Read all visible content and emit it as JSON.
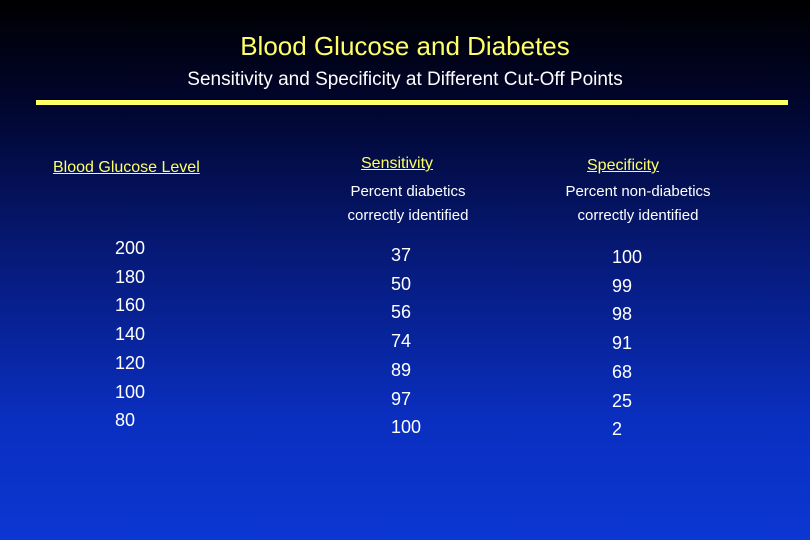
{
  "slide": {
    "title": "Blood Glucose and Diabetes",
    "subtitle": "Sensitivity and Specificity at Different Cut-Off Points",
    "colors": {
      "accent_yellow": "#ffff66",
      "text_white": "#ffffff",
      "background_top": "#000000",
      "background_bottom": "#0b37d2"
    }
  },
  "table": {
    "columns": {
      "glucose": {
        "header": "Blood Glucose Level",
        "values": [
          "200",
          "180",
          "160",
          "140",
          "120",
          "100",
          "80"
        ]
      },
      "sensitivity": {
        "header": "Sensitivity",
        "description_line1": "Percent diabetics",
        "description_line2": "correctly identified",
        "values": [
          "37",
          "50",
          "56",
          "74",
          "89",
          "97",
          "100"
        ]
      },
      "specificity": {
        "header": "Specificity",
        "description_line1": "Percent non-diabetics",
        "description_line2": "correctly identified",
        "values": [
          "100",
          "99",
          "98",
          "91",
          "68",
          "25",
          "2"
        ]
      }
    }
  }
}
